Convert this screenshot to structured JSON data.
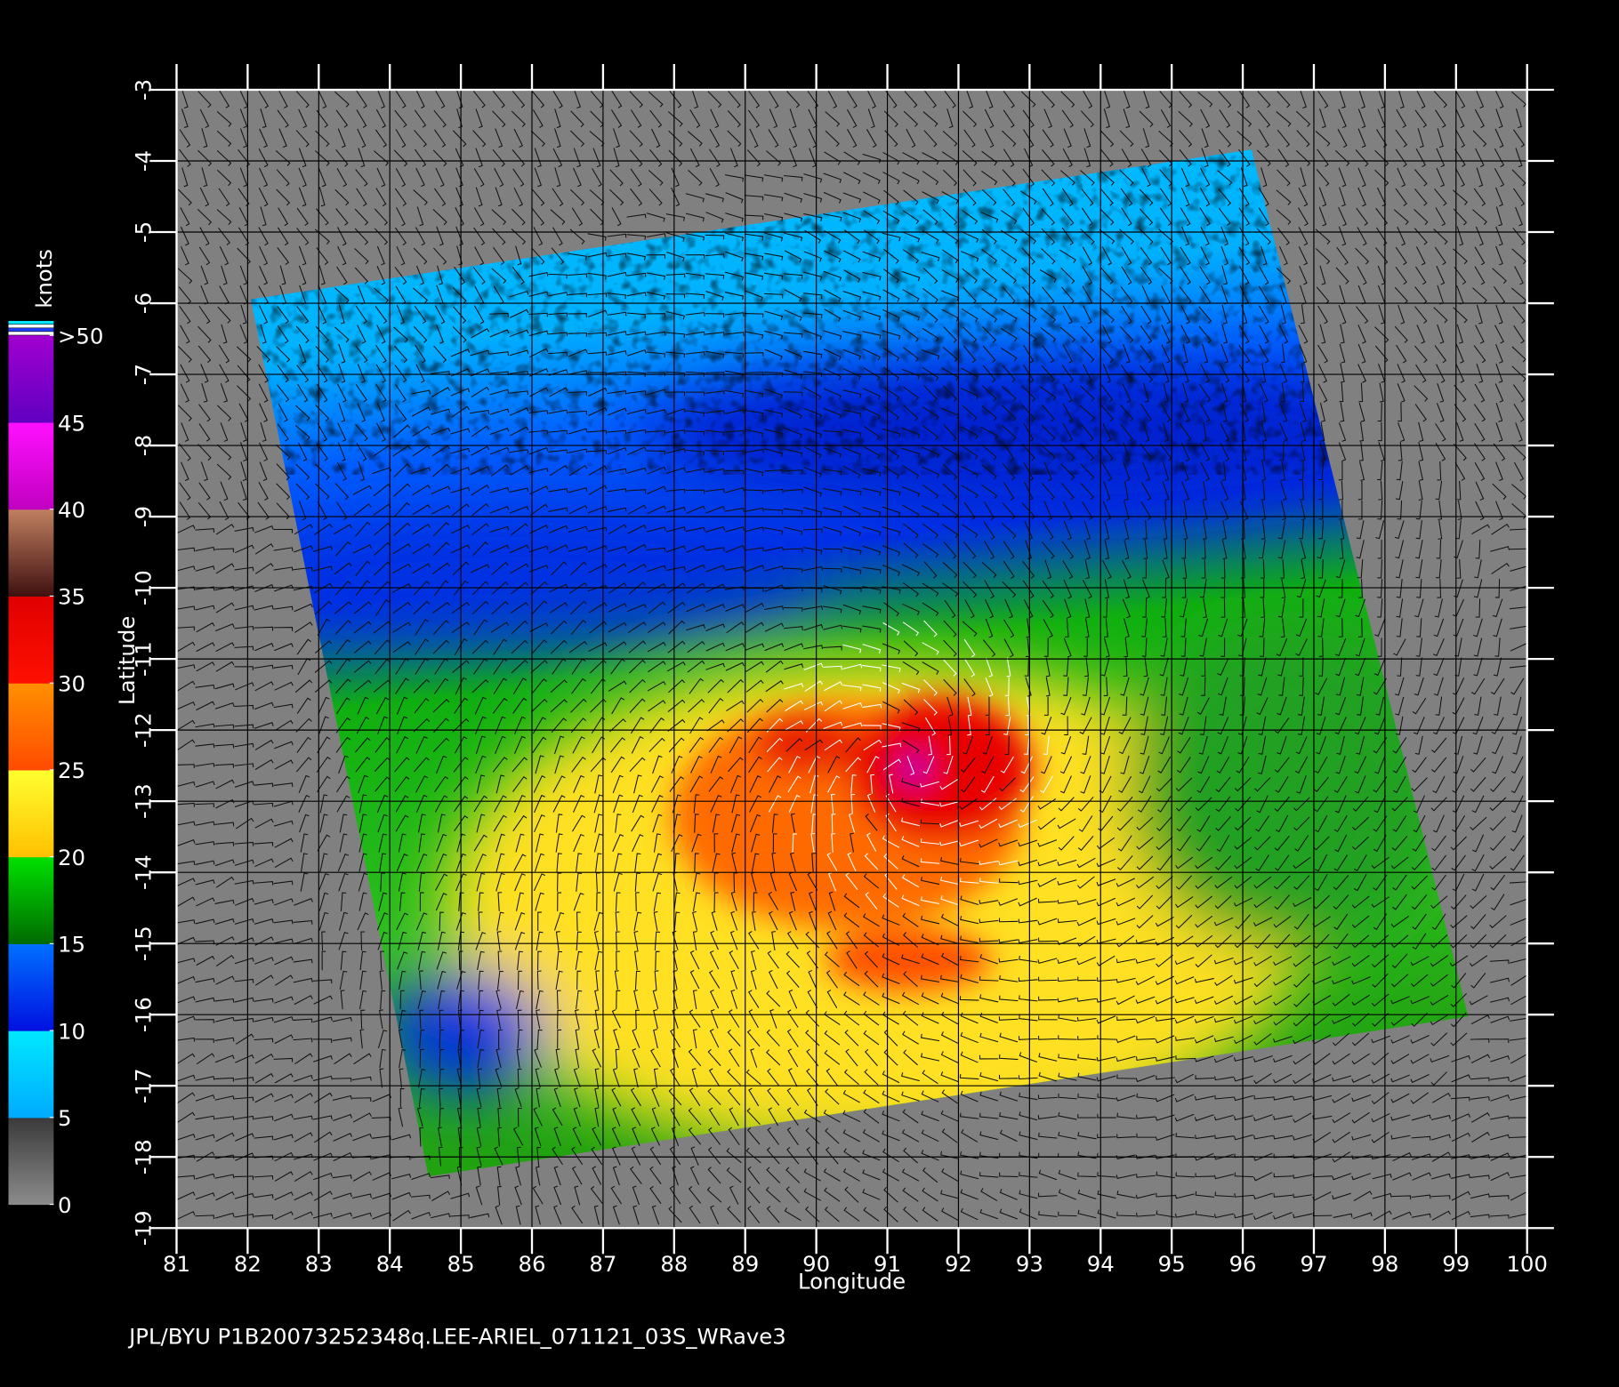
{
  "map": {
    "xlabel": "Longitude",
    "ylabel": "Latitude",
    "xlim": [
      81,
      100
    ],
    "ylim": [
      -19,
      -3
    ],
    "xticks": [
      81,
      82,
      83,
      84,
      85,
      86,
      87,
      88,
      89,
      90,
      91,
      92,
      93,
      94,
      95,
      96,
      97,
      98,
      99,
      100
    ],
    "yticks": [
      -3,
      -4,
      -5,
      -6,
      -7,
      -8,
      -9,
      -10,
      -11,
      -12,
      -13,
      -14,
      -15,
      -16,
      -17,
      -18,
      -19
    ],
    "grid": true
  },
  "colorbar": {
    "title": "knots",
    "lim": [
      0,
      50
    ],
    "ticks": [
      0,
      5,
      10,
      15,
      20,
      25,
      30,
      35,
      40,
      {
        "value": 50,
        "label": ">50"
      }
    ],
    "extra_label": 45,
    "colors": [
      [
        "#3a3a3a",
        "#8c8c8c"
      ],
      [
        "#00e8ff",
        "#00aaff"
      ],
      [
        "#0070ff",
        "#0010e0"
      ],
      [
        "#00e000",
        "#006a00"
      ],
      [
        "#ffff30",
        "#ffc000"
      ],
      [
        "#ff9000",
        "#ff4a00"
      ],
      [
        "#e00000",
        "#ff1000"
      ],
      [
        "#c08060",
        "#401010"
      ],
      [
        "#ff10ff",
        "#c000c0"
      ],
      [
        "#a000d0",
        "#6000c0"
      ]
    ]
  },
  "footer": "JPL/BYU  P1B20073252348q.LEE-ARIEL_071121_03S_WRave3"
}
